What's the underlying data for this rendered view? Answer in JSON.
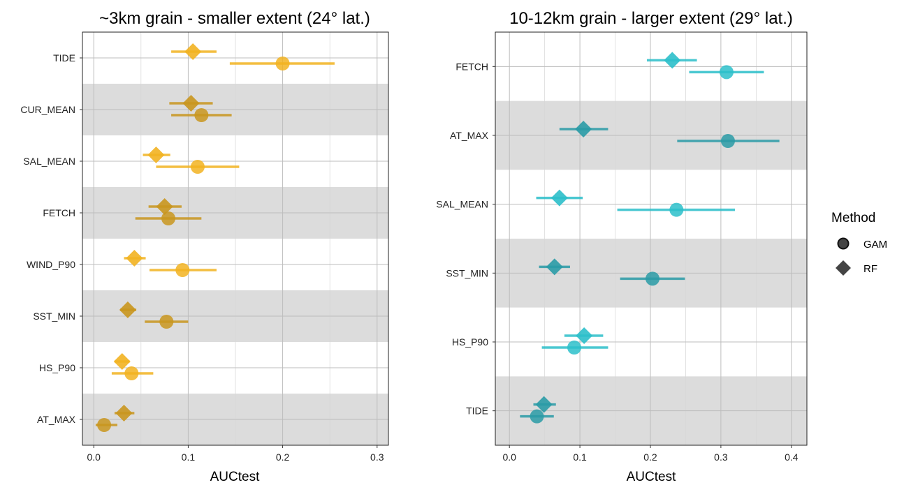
{
  "chart_data": [
    {
      "type": "scatter",
      "title": "~3km grain - smaller extent (24° lat.)",
      "xlabel": "AUCtest",
      "ylabel": "",
      "xlim": [
        -0.012,
        0.312
      ],
      "xticks": [
        "0.0",
        "0.1",
        "0.2",
        "0.3"
      ],
      "xtick_values": [
        0.0,
        0.1,
        0.2,
        0.3
      ],
      "grid": true,
      "color": "#F2B321",
      "dark_color": "#C9961E",
      "categories": [
        "TIDE",
        "CUR_MEAN",
        "SAL_MEAN",
        "FETCH",
        "WIND_P90",
        "SST_MIN",
        "HS_P90",
        "AT_MAX"
      ],
      "shaded_rows": [
        false,
        true,
        false,
        true,
        false,
        true,
        false,
        true
      ],
      "series": [
        {
          "name": "GAM",
          "marker": "circle",
          "values": [
            0.2,
            0.114,
            0.11,
            0.079,
            0.094,
            0.077,
            0.04,
            0.011
          ],
          "lower": [
            0.144,
            0.082,
            0.066,
            0.044,
            0.059,
            0.054,
            0.019,
            0.002
          ],
          "upper": [
            0.255,
            0.146,
            0.154,
            0.114,
            0.13,
            0.1,
            0.063,
            0.025
          ]
        },
        {
          "name": "RF",
          "marker": "diamond",
          "values": [
            0.105,
            0.103,
            0.066,
            0.075,
            0.043,
            0.036,
            0.03,
            0.032
          ],
          "lower": [
            0.082,
            0.08,
            0.052,
            0.058,
            0.032,
            0.028,
            0.022,
            0.022
          ],
          "upper": [
            0.13,
            0.126,
            0.081,
            0.093,
            0.055,
            0.045,
            0.038,
            0.043
          ]
        }
      ]
    },
    {
      "type": "scatter",
      "title": "10-12km grain - larger extent (29° lat.)",
      "xlabel": "AUCtest",
      "ylabel": "",
      "xlim": [
        -0.02,
        0.422
      ],
      "xticks": [
        "0.0",
        "0.1",
        "0.2",
        "0.3",
        "0.4"
      ],
      "xtick_values": [
        0.0,
        0.1,
        0.2,
        0.3,
        0.4
      ],
      "grid": true,
      "color": "#2CBFCA",
      "dark_color": "#2A9BA6",
      "categories": [
        "FETCH",
        "AT_MAX",
        "SAL_MEAN",
        "SST_MIN",
        "HS_P90",
        "TIDE"
      ],
      "shaded_rows": [
        false,
        true,
        false,
        true,
        false,
        true
      ],
      "series": [
        {
          "name": "GAM",
          "marker": "circle",
          "values": [
            0.308,
            0.31,
            0.237,
            0.203,
            0.092,
            0.039
          ],
          "lower": [
            0.255,
            0.238,
            0.153,
            0.157,
            0.046,
            0.015
          ],
          "upper": [
            0.361,
            0.383,
            0.32,
            0.249,
            0.14,
            0.063
          ]
        },
        {
          "name": "RF",
          "marker": "diamond",
          "values": [
            0.231,
            0.105,
            0.071,
            0.064,
            0.106,
            0.049
          ],
          "lower": [
            0.195,
            0.071,
            0.038,
            0.042,
            0.078,
            0.034
          ],
          "upper": [
            0.266,
            0.14,
            0.104,
            0.086,
            0.133,
            0.066
          ]
        }
      ]
    }
  ],
  "legend": {
    "title": "Method",
    "placement": "right",
    "items": [
      {
        "label": "GAM",
        "marker": "circle"
      },
      {
        "label": "RF",
        "marker": "diamond"
      }
    ],
    "color": "#444444"
  }
}
